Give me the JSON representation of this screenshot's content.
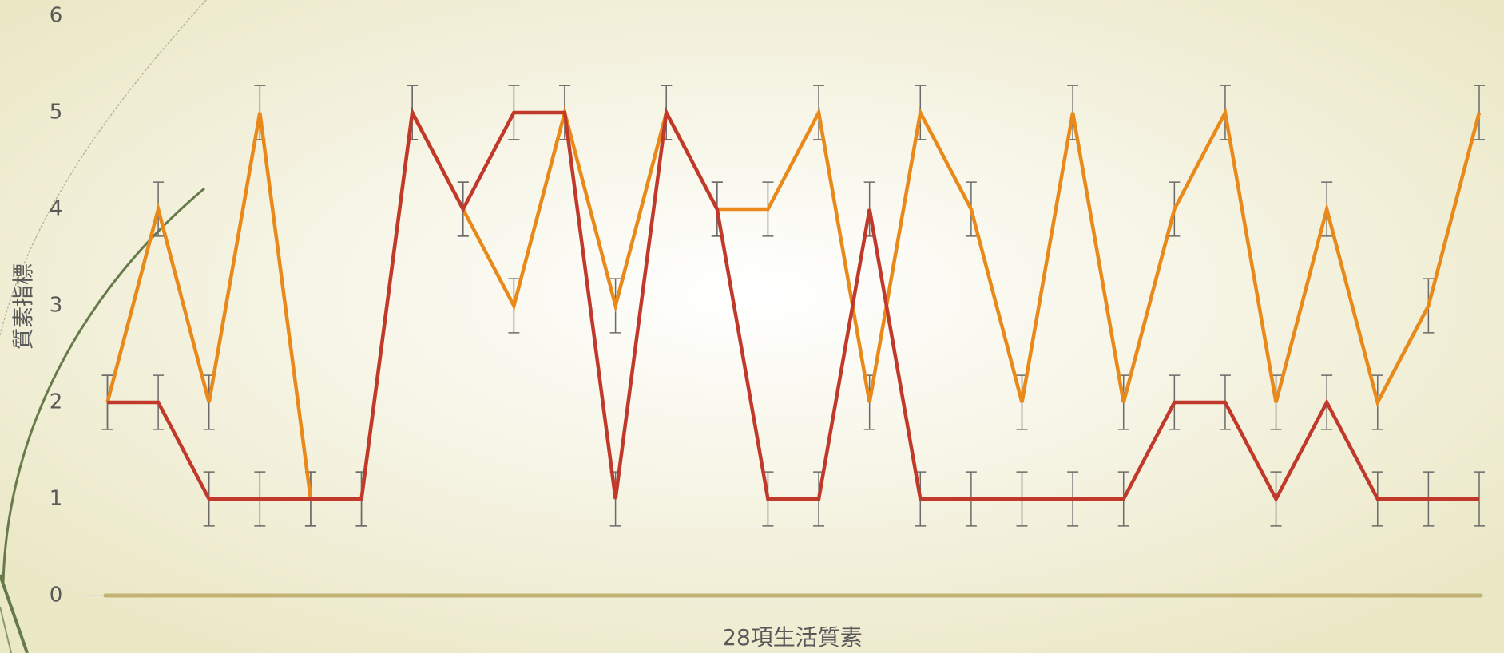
{
  "chart_data": {
    "type": "line",
    "y_label": "質素指標",
    "x_label": "28項生活質素",
    "categories": [
      null,
      null,
      null,
      null,
      null,
      null,
      null,
      null,
      null,
      null,
      null,
      null,
      null,
      null,
      null,
      null,
      null,
      null,
      null,
      null,
      null,
      null,
      null,
      null,
      null,
      null,
      null,
      null
    ],
    "series": [
      {
        "color": "#e8891a",
        "error": 0.28,
        "values": [
          2,
          4,
          2,
          5,
          1,
          1,
          5,
          4,
          3,
          5,
          3,
          5,
          4,
          4,
          5,
          2,
          5,
          4,
          2,
          5,
          2,
          4,
          5,
          2,
          4,
          2,
          3,
          5
        ]
      },
      {
        "color": "#c0392b",
        "error": 0.28,
        "values": [
          2,
          2,
          1,
          1,
          1,
          1,
          5,
          4,
          5,
          5,
          1,
          5,
          4,
          1,
          1,
          4,
          1,
          1,
          1,
          1,
          1,
          2,
          2,
          1,
          2,
          1,
          1,
          1
        ]
      }
    ],
    "ylim": [
      0,
      6
    ],
    "yticks": [
      0,
      1,
      2,
      3,
      4,
      5,
      6
    ],
    "grid": false
  }
}
